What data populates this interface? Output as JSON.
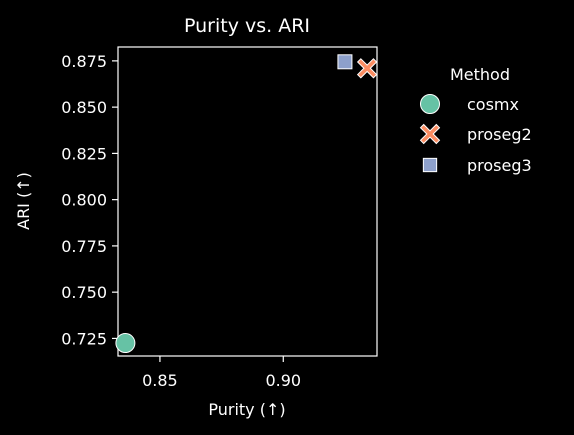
{
  "chart_data": {
    "type": "scatter",
    "title": "Purity vs. ARI",
    "xlabel": "Purity (↑)",
    "ylabel": "ARI (↑)",
    "xlim": [
      0.833,
      0.938
    ],
    "ylim": [
      0.7155,
      0.8825
    ],
    "xticks": [
      {
        "value": 0.85,
        "label": "0.85"
      },
      {
        "value": 0.9,
        "label": "0.90"
      }
    ],
    "yticks": [
      {
        "value": 0.725,
        "label": "0.725"
      },
      {
        "value": 0.75,
        "label": "0.750"
      },
      {
        "value": 0.775,
        "label": "0.775"
      },
      {
        "value": 0.8,
        "label": "0.800"
      },
      {
        "value": 0.825,
        "label": "0.825"
      },
      {
        "value": 0.85,
        "label": "0.850"
      },
      {
        "value": 0.875,
        "label": "0.875"
      }
    ],
    "grid": false,
    "legend_title": "Method",
    "legend_placement": "outside-right",
    "series": [
      {
        "name": "cosmx",
        "marker": "circle",
        "color": "#66c2a5",
        "points": [
          {
            "x": 0.836,
            "y": 0.7225
          }
        ]
      },
      {
        "name": "proseg2",
        "marker": "x",
        "color": "#fc8d62",
        "points": [
          {
            "x": 0.934,
            "y": 0.871
          }
        ]
      },
      {
        "name": "proseg3",
        "marker": "square",
        "color": "#8da0cb",
        "points": [
          {
            "x": 0.925,
            "y": 0.8745
          }
        ]
      }
    ]
  }
}
